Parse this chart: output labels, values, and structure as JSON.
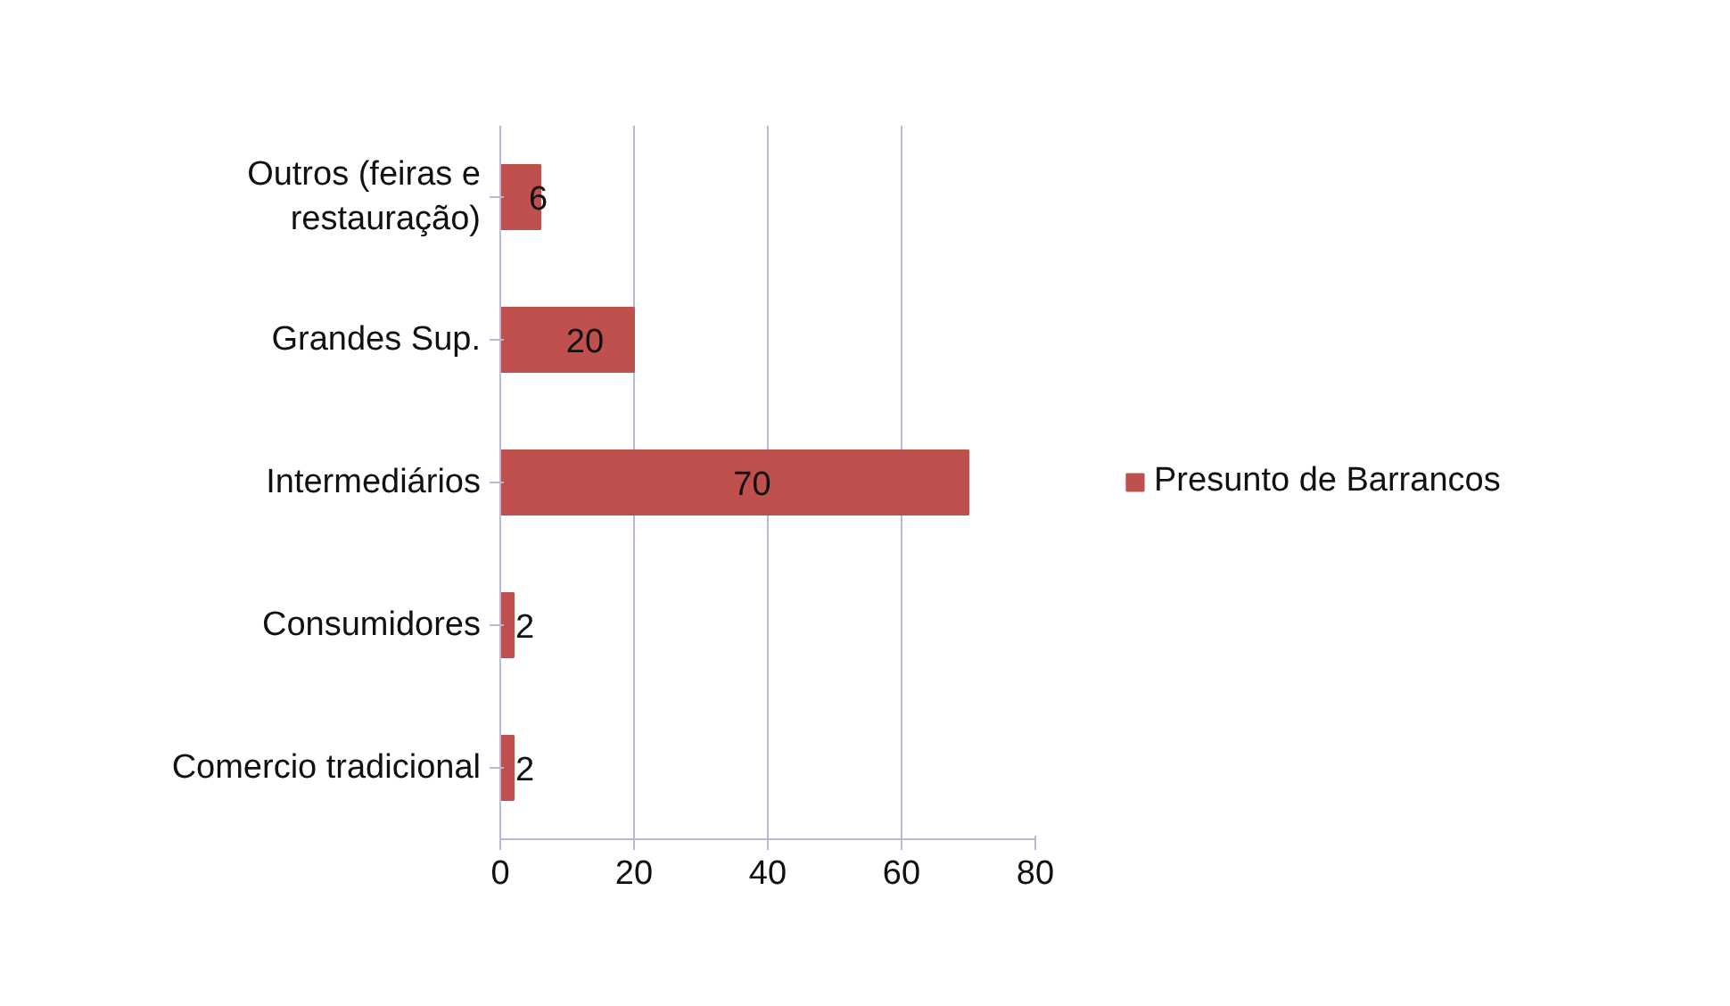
{
  "chart_data": {
    "type": "bar",
    "orientation": "horizontal",
    "categories": [
      "Outros (feiras e restauração)",
      "Grandes Sup.",
      "Intermediários",
      "Consumidores",
      "Comercio tradicional"
    ],
    "series": [
      {
        "name": "Presunto de Barrancos",
        "color": "#c0504d",
        "values": [
          6,
          20,
          70,
          2,
          2
        ]
      }
    ],
    "xlim": [
      0,
      80
    ],
    "xticks": [
      0,
      20,
      40,
      60,
      80
    ],
    "grid": "x",
    "legend": "right",
    "data_labels": true
  }
}
